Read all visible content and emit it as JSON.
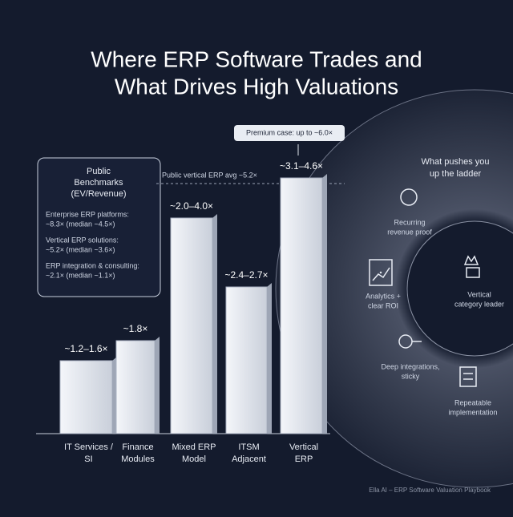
{
  "title": {
    "lines": [
      "Where ERP Software Trades and",
      "What Drives High Valuations"
    ]
  },
  "benchmarks": {
    "title": [
      "Public",
      "Benchmarks",
      "(EV/Revenue)"
    ],
    "items": [
      [
        "Enterprise ERP platforms:",
        "~8.3× (median ~4.5×)"
      ],
      [
        "Vertical ERP solutions:",
        "~5.2× (median ~3.6×)"
      ],
      [
        "ERP integration & consulting:",
        "~2.1× (median ~1.1×)"
      ]
    ]
  },
  "bars": [
    {
      "category": [
        "IT Services /",
        "SI"
      ],
      "range": "~1.2–1.6×"
    },
    {
      "category": [
        "Finance",
        "Modules"
      ],
      "range": "~1.8×"
    },
    {
      "category": [
        "Mixed ERP",
        "Model"
      ],
      "range": "~2.0–4.0×"
    },
    {
      "category": [
        "ITSM",
        "Adjacent"
      ],
      "range": "~2.4–2.7×"
    },
    {
      "category": [
        "Vertical",
        "ERP"
      ],
      "range": "~3.1–4.6×"
    }
  ],
  "avg_line": "Public vertical ERP avg ~5.2×",
  "premium": "Premium case: up to ~6.0×",
  "ladder": {
    "title": [
      "What pushes you",
      "up the ladder"
    ],
    "items": [
      [
        "Recurring",
        "revenue proof"
      ],
      [
        "Analytics +",
        "clear ROI"
      ],
      [
        "Vertical",
        "category leader"
      ],
      [
        "Deep integrations,",
        "sticky"
      ],
      [
        "Repeatable",
        "implementation"
      ]
    ]
  },
  "footer": "Ella AI – ERP Software Valuation Playbook"
}
